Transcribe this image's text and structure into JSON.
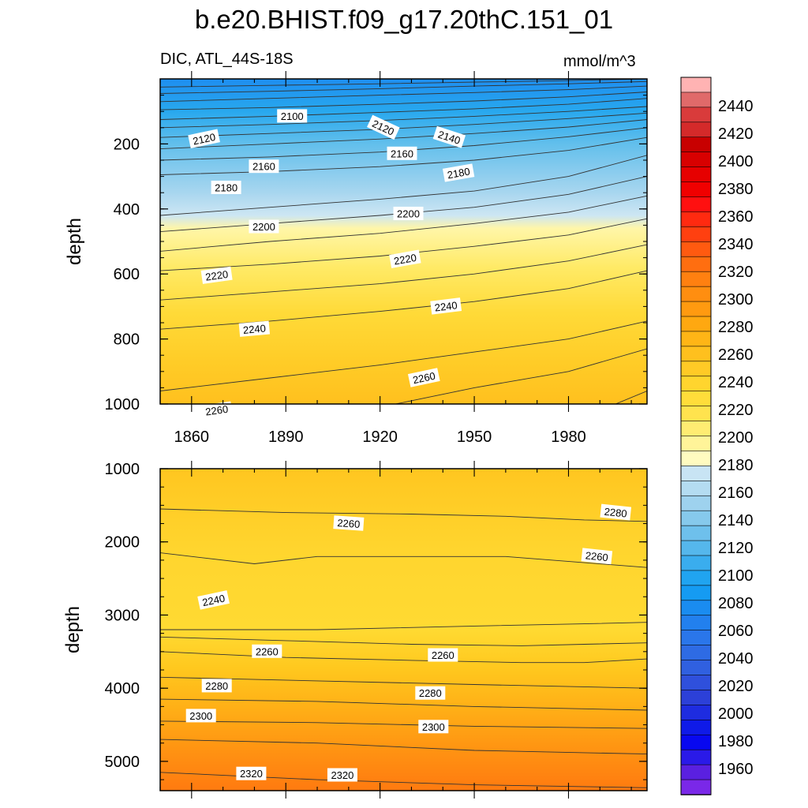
{
  "title": "b.e20.BHIST.f09_g17.20thC.151_01",
  "subtitle_left": "DIC, ATL_44S-18S",
  "subtitle_right": "mmol/m^3",
  "chart_data": [
    {
      "type": "heatmap",
      "panel": "upper",
      "variable": "DIC",
      "region": "ATL_44S-18S",
      "units": "mmol/m^3",
      "xlabel": "",
      "ylabel": "depth",
      "xlim": [
        1850,
        2005
      ],
      "ylim": [
        0,
        1000
      ],
      "y_reversed": true,
      "x_ticks": [
        1860,
        1890,
        1920,
        1950,
        1980
      ],
      "y_ticks": [
        200,
        400,
        600,
        800,
        1000
      ],
      "contour_levels": [
        2100,
        2110,
        2120,
        2130,
        2140,
        2150,
        2160,
        2170,
        2180,
        2190,
        2200,
        2210,
        2220,
        2230,
        2240,
        2250,
        2260,
        2270,
        2280
      ],
      "contours": [
        {
          "level": 2100,
          "x": [
            1850,
            1885,
            1920,
            1950,
            1980,
            2005
          ],
          "y": [
            25,
            20,
            15,
            10,
            5,
            0
          ]
        },
        {
          "level": 2110,
          "x": [
            1850,
            1885,
            1920,
            1950,
            1980,
            2005
          ],
          "y": [
            45,
            38,
            30,
            22,
            15,
            8
          ]
        },
        {
          "level": 2120,
          "x": [
            1850,
            1885,
            1920,
            1950,
            1980,
            2005
          ],
          "y": [
            70,
            60,
            50,
            42,
            33,
            22
          ]
        },
        {
          "level": 2130,
          "x": [
            1850,
            1885,
            1920,
            1950,
            1980,
            2005
          ],
          "y": [
            95,
            88,
            78,
            68,
            55,
            40
          ]
        },
        {
          "level": 2140,
          "x": [
            1850,
            1885,
            1920,
            1950,
            1980,
            2005
          ],
          "y": [
            125,
            115,
            103,
            92,
            78,
            60
          ]
        },
        {
          "level": 2150,
          "x": [
            1850,
            1885,
            1920,
            1950,
            1980,
            2005
          ],
          "y": [
            150,
            140,
            128,
            115,
            100,
            85
          ]
        },
        {
          "level": 2160,
          "x": [
            1850,
            1885,
            1920,
            1950,
            1980,
            2005
          ],
          "y": [
            180,
            168,
            155,
            140,
            122,
            105
          ]
        },
        {
          "level": 2170,
          "x": [
            1850,
            1885,
            1920,
            1950,
            1980,
            2005
          ],
          "y": [
            215,
            200,
            185,
            168,
            148,
            125
          ]
        },
        {
          "level": 2180,
          "x": [
            1850,
            1885,
            1920,
            1950,
            1980,
            2005
          ],
          "y": [
            250,
            240,
            225,
            205,
            178,
            150
          ]
        },
        {
          "level": 2190,
          "x": [
            1850,
            1885,
            1920,
            1950,
            1980,
            2005
          ],
          "y": [
            295,
            285,
            270,
            250,
            220,
            180
          ]
        },
        {
          "level": 2200,
          "x": [
            1850,
            1885,
            1920,
            1950,
            1980,
            2005
          ],
          "y": [
            420,
            395,
            370,
            345,
            300,
            235
          ]
        },
        {
          "level": 2210,
          "x": [
            1850,
            1885,
            1920,
            1950,
            1980,
            2005
          ],
          "y": [
            470,
            445,
            420,
            395,
            355,
            300
          ]
        },
        {
          "level": 2220,
          "x": [
            1850,
            1885,
            1920,
            1950,
            1980,
            2005
          ],
          "y": [
            530,
            500,
            475,
            445,
            410,
            360
          ]
        },
        {
          "level": 2230,
          "x": [
            1850,
            1885,
            1920,
            1950,
            1980,
            2005
          ],
          "y": [
            590,
            570,
            545,
            515,
            480,
            430
          ]
        },
        {
          "level": 2240,
          "x": [
            1850,
            1885,
            1920,
            1950,
            1980,
            2005
          ],
          "y": [
            680,
            655,
            630,
            600,
            560,
            510
          ]
        },
        {
          "level": 2250,
          "x": [
            1850,
            1885,
            1920,
            1950,
            1980,
            2005
          ],
          "y": [
            770,
            745,
            715,
            685,
            645,
            590
          ]
        },
        {
          "level": 2260,
          "x": [
            1850,
            1885,
            1920,
            1950,
            1980,
            2005
          ],
          "y": [
            960,
            920,
            880,
            840,
            800,
            745
          ]
        },
        {
          "level": 2270,
          "x": [
            1925,
            1950,
            1980,
            2005
          ],
          "y": [
            1000,
            950,
            900,
            830
          ]
        },
        {
          "level": 2280,
          "x": [
            1995,
            2005
          ],
          "y": [
            1000,
            960
          ]
        }
      ],
      "contour_labels": [
        {
          "text": "2100",
          "x": 1892,
          "y": 115,
          "angle": 0
        },
        {
          "text": "2120",
          "x": 1864,
          "y": 185,
          "angle": -12
        },
        {
          "text": "2120",
          "x": 1921,
          "y": 150,
          "angle": 25
        },
        {
          "text": "2140",
          "x": 1942,
          "y": 180,
          "angle": 18
        },
        {
          "text": "2160",
          "x": 1927,
          "y": 230,
          "angle": 0
        },
        {
          "text": "2160",
          "x": 1883,
          "y": 270,
          "angle": 0
        },
        {
          "text": "2180",
          "x": 1945,
          "y": 290,
          "angle": -10
        },
        {
          "text": "2180",
          "x": 1871,
          "y": 335,
          "angle": 0
        },
        {
          "text": "2200",
          "x": 1929,
          "y": 415,
          "angle": 0
        },
        {
          "text": "2200",
          "x": 1883,
          "y": 455,
          "angle": 0
        },
        {
          "text": "2220",
          "x": 1928,
          "y": 555,
          "angle": -10
        },
        {
          "text": "2220",
          "x": 1868,
          "y": 605,
          "angle": -8
        },
        {
          "text": "2240",
          "x": 1941,
          "y": 700,
          "angle": -7
        },
        {
          "text": "2240",
          "x": 1880,
          "y": 770,
          "angle": -5
        },
        {
          "text": "2260",
          "x": 1934,
          "y": 920,
          "angle": -12
        },
        {
          "text": "2260",
          "x": 1868,
          "y": 1020,
          "angle": -8
        }
      ]
    },
    {
      "type": "heatmap",
      "panel": "lower",
      "variable": "DIC",
      "region": "ATL_44S-18S",
      "units": "mmol/m^3",
      "xlabel": "",
      "ylabel": "depth",
      "xlim": [
        1850,
        2005
      ],
      "ylim": [
        1000,
        5400
      ],
      "y_reversed": true,
      "y_ticks": [
        1000,
        2000,
        3000,
        4000,
        5000
      ],
      "contour_levels": [
        2240,
        2250,
        2260,
        2270,
        2280,
        2290,
        2300,
        2310,
        2320
      ],
      "contours": [
        {
          "level": 2250,
          "x": [
            1850,
            1890,
            1930,
            1960,
            1985,
            2005
          ],
          "y": [
            1550,
            1600,
            1620,
            1650,
            1700,
            1720
          ]
        },
        {
          "level": 2250,
          "x": [
            1850,
            1880,
            1900,
            1960,
            2005
          ],
          "y": [
            2150,
            2300,
            2200,
            2200,
            2350
          ]
        },
        {
          "level": 2250,
          "x": [
            1850,
            1900,
            1950,
            1985,
            2005
          ],
          "y": [
            3200,
            3200,
            3150,
            3120,
            3100
          ]
        },
        {
          "level": 2260,
          "x": [
            1850,
            1890,
            1930,
            1965,
            1985,
            2005
          ],
          "y": [
            3300,
            3350,
            3400,
            3420,
            3400,
            3380
          ]
        },
        {
          "level": 2270,
          "x": [
            1850,
            1890,
            1930,
            1965,
            1985,
            2005
          ],
          "y": [
            3500,
            3580,
            3620,
            3650,
            3650,
            3600
          ]
        },
        {
          "level": 2280,
          "x": [
            1850,
            1900,
            1950,
            2005
          ],
          "y": [
            3850,
            3900,
            3950,
            4000
          ]
        },
        {
          "level": 2290,
          "x": [
            1850,
            1900,
            1950,
            2005
          ],
          "y": [
            4150,
            4180,
            4250,
            4300
          ]
        },
        {
          "level": 2300,
          "x": [
            1850,
            1900,
            1950,
            2005
          ],
          "y": [
            4450,
            4470,
            4520,
            4550
          ]
        },
        {
          "level": 2310,
          "x": [
            1850,
            1900,
            1950,
            2005
          ],
          "y": [
            4700,
            4750,
            4850,
            4900
          ]
        },
        {
          "level": 2320,
          "x": [
            1850,
            1900,
            1950,
            2005
          ],
          "y": [
            5150,
            5250,
            5320,
            5360
          ]
        }
      ],
      "contour_labels": [
        {
          "text": "2260",
          "x": 1910,
          "y": 1750,
          "angle": 4
        },
        {
          "text": "2280",
          "x": 1995,
          "y": 1600,
          "angle": 6
        },
        {
          "text": "2260",
          "x": 1989,
          "y": 2200,
          "angle": 6
        },
        {
          "text": "2240",
          "x": 1867,
          "y": 2800,
          "angle": -12
        },
        {
          "text": "2260",
          "x": 1884,
          "y": 3500,
          "angle": 0
        },
        {
          "text": "2260",
          "x": 1940,
          "y": 3550,
          "angle": 0
        },
        {
          "text": "2280",
          "x": 1868,
          "y": 3970,
          "angle": 0
        },
        {
          "text": "2280",
          "x": 1936,
          "y": 4070,
          "angle": 0
        },
        {
          "text": "2300",
          "x": 1863,
          "y": 4380,
          "angle": 0
        },
        {
          "text": "2300",
          "x": 1937,
          "y": 4530,
          "angle": 0
        },
        {
          "text": "2320",
          "x": 1879,
          "y": 5170,
          "angle": 0
        },
        {
          "text": "2320",
          "x": 1908,
          "y": 5190,
          "angle": 0
        }
      ]
    }
  ],
  "colorbar": {
    "tick_labels": [
      "2440",
      "2420",
      "2400",
      "2380",
      "2360",
      "2340",
      "2320",
      "2300",
      "2280",
      "2260",
      "2240",
      "2220",
      "2200",
      "2180",
      "2160",
      "2140",
      "2120",
      "2100",
      "2080",
      "2060",
      "2040",
      "2020",
      "2000",
      "1980",
      "1960"
    ],
    "colors_top_to_bottom": [
      "#FFB3B3",
      "#E06A6A",
      "#D93B3B",
      "#D42A2A",
      "#C80000",
      "#D80000",
      "#E60000",
      "#F00000",
      "#FF1010",
      "#FF2A10",
      "#FF4010",
      "#FF5A10",
      "#FF6E10",
      "#FF8010",
      "#FF8E10",
      "#FF9A10",
      "#FFA810",
      "#FFB516",
      "#FFC01E",
      "#FFCA26",
      "#FFD52E",
      "#FFDD3A",
      "#FFE34E",
      "#FFEC72",
      "#FFF499",
      "#FFFBC0",
      "#C8E4F4",
      "#B4DCF1",
      "#9ED2EE",
      "#86C9EC",
      "#6EC0EC",
      "#55B7EC",
      "#3AADEE",
      "#20A4F0",
      "#159BF2",
      "#1A8CF0",
      "#2280EE",
      "#2A76EA",
      "#2E6BE4",
      "#3060E0",
      "#2F50DC",
      "#2C40D8",
      "#1E2CE0",
      "#0F1AE8",
      "#0808F0",
      "#2A1AE8",
      "#5A20E0",
      "#7A28E8"
    ]
  },
  "colors": {
    "background": "#ffffff",
    "contour_line": "#333333"
  }
}
